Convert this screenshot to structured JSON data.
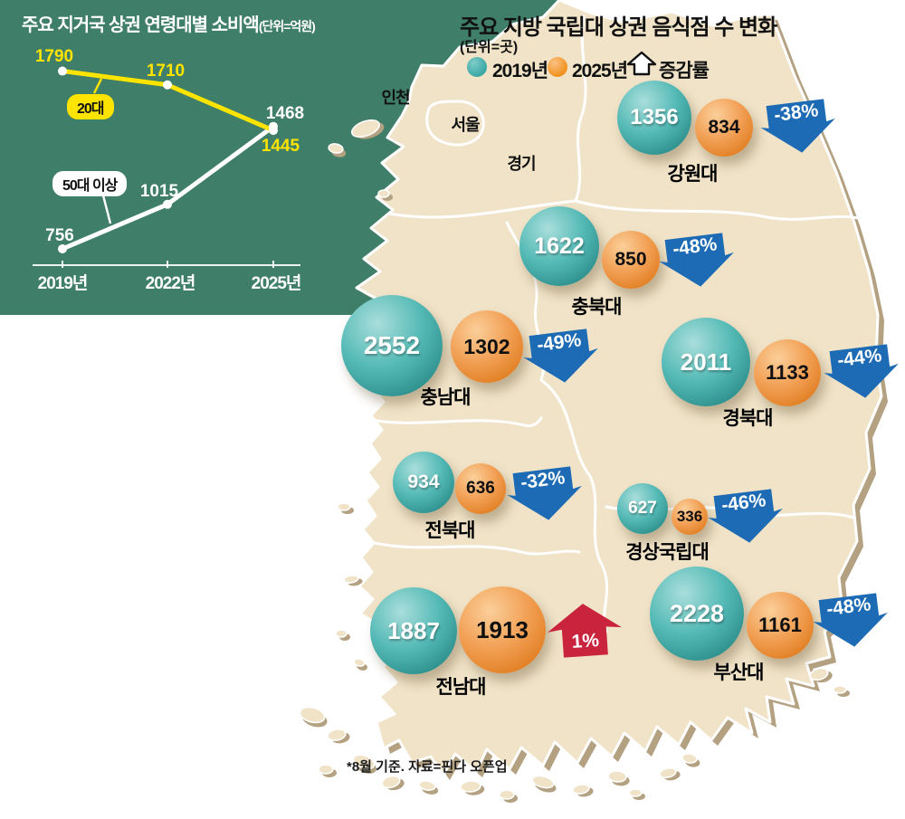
{
  "consumption_chart": {
    "title": "주요 지거국 상권 연령대별 소비액",
    "unit_label": "(단위=억원)"
  },
  "map_panel": {
    "title": "주요 지방 국립대 상권 음식점 수 변화",
    "unit_label": "(단위=곳)",
    "legend": {
      "year_2019": "2019년",
      "year_2025": "2025년",
      "change_label": "증감률"
    },
    "region_labels": [
      "인천",
      "서울",
      "경기"
    ],
    "footnote": "*8월 기준. 자료=핀다 오픈업"
  },
  "colors": {
    "panel_green": "#3f7e68",
    "land_beige": "#f0e3c8",
    "land_shadow": "#b3a181",
    "teal_bubble": "#46b1ae",
    "orange_bubble": "#f0993f",
    "arrow_blue": "#1c6bb4",
    "arrow_red": "#c9233e",
    "line_yellow": "#ffe400",
    "line_white": "#ffffff"
  },
  "chart_data": [
    {
      "type": "line",
      "title": "주요 지거국 상권 연령대별 소비액",
      "unit": "억원",
      "categories": [
        "2019년",
        "2022년",
        "2025년"
      ],
      "series": [
        {
          "name": "20대",
          "color": "#ffe400",
          "values": [
            1790,
            1710,
            1445
          ]
        },
        {
          "name": "50대 이상",
          "color": "#ffffff",
          "values": [
            756,
            1015,
            1468
          ]
        }
      ],
      "grid": false,
      "legend_position": "inline-callouts"
    },
    {
      "type": "bubble-map",
      "title": "주요 지방 국립대 상권 음식점 수 변화",
      "unit": "곳",
      "legend": [
        "2019년",
        "2025년",
        "증감률"
      ],
      "points": [
        {
          "name": "강원대",
          "y2019": 1356,
          "y2025": 834,
          "change": "-38%",
          "direction": "down"
        },
        {
          "name": "충북대",
          "y2019": 1622,
          "y2025": 850,
          "change": "-48%",
          "direction": "down"
        },
        {
          "name": "충남대",
          "y2019": 2552,
          "y2025": 1302,
          "change": "-49%",
          "direction": "down"
        },
        {
          "name": "경북대",
          "y2019": 2011,
          "y2025": 1133,
          "change": "-44%",
          "direction": "down"
        },
        {
          "name": "전북대",
          "y2019": 934,
          "y2025": 636,
          "change": "-32%",
          "direction": "down"
        },
        {
          "name": "경상국립대",
          "y2019": 627,
          "y2025": 336,
          "change": "-46%",
          "direction": "down"
        },
        {
          "name": "전남대",
          "y2019": 1887,
          "y2025": 1913,
          "change": "1%",
          "direction": "up"
        },
        {
          "name": "부산대",
          "y2019": 2228,
          "y2025": 1161,
          "change": "-48%",
          "direction": "down"
        }
      ]
    }
  ]
}
